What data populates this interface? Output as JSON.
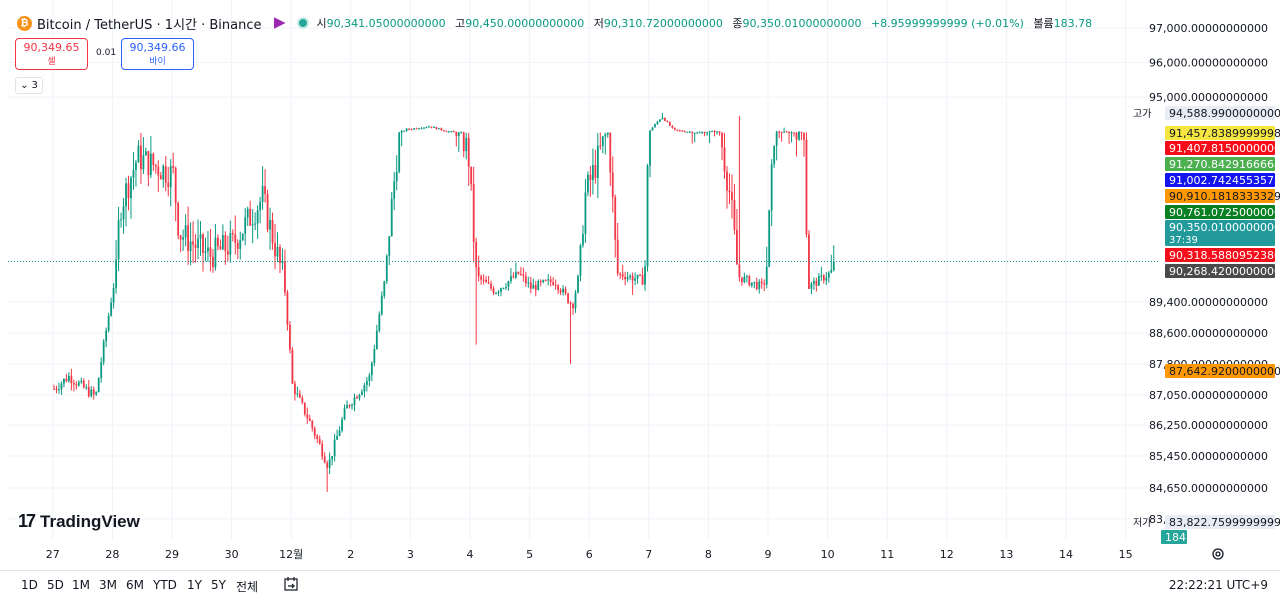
{
  "header": {
    "symbol": "Bitcoin / TetherUS · 1시간 · Binance",
    "coin_glyph": "₿",
    "ohlc": [
      {
        "label": "시",
        "value": "90,341.05000000000"
      },
      {
        "label": "고",
        "value": "90,450.00000000000"
      },
      {
        "label": "저",
        "value": "90,310.72000000000"
      },
      {
        "label": "종",
        "value": "90,350.01000000000"
      },
      {
        "label": "",
        "value": "+8.95999999999 (+0.01%)"
      },
      {
        "label": "볼륨",
        "value": "183.78"
      }
    ]
  },
  "trade": {
    "sell_price": "90,349.65",
    "sell_label": "셀",
    "spread": "0.01",
    "buy_price": "90,349.66",
    "buy_label": "바이",
    "indicators_count": "3"
  },
  "logo": {
    "mark": "17",
    "text": "TradingView"
  },
  "colors": {
    "up": "#089981",
    "down": "#f23645",
    "grid": "#f0f3fa"
  },
  "chart_data": {
    "type": "candlestick",
    "y_ticks": [
      "97,000.00000000000",
      "96,000.00000000000",
      "95,000.00000000000",
      "89,400.00000000000",
      "88,600.00000000000",
      "87,800.00000000000",
      "87,050.00000000000",
      "86,250.00000000000",
      "85,450.00000000000",
      "84,650.00000000000",
      "83,850.00000000000"
    ],
    "x_ticks": [
      "27",
      "28",
      "29",
      "30",
      "12월",
      "2",
      "3",
      "4",
      "5",
      "6",
      "7",
      "8",
      "9",
      "10",
      "11",
      "12",
      "13",
      "14",
      "15"
    ],
    "price_labels": [
      {
        "prefix": "고가",
        "text": "94,588.99000000000",
        "bg": "#e8ecf5",
        "fg": "#131722"
      },
      {
        "prefix": "",
        "text": "91,457.83899999984",
        "bg": "#f5e642",
        "fg": "#131722"
      },
      {
        "prefix": "",
        "text": "91,407.81500000000",
        "bg": "#f70d1a",
        "fg": "#ffffff"
      },
      {
        "prefix": "",
        "text": "91,270.84291666684",
        "bg": "#4caf50",
        "fg": "#ffffff"
      },
      {
        "prefix": "",
        "text": "91,002.74245535756",
        "bg": "#1414f0",
        "fg": "#ffffff"
      },
      {
        "prefix": "",
        "text": "90,910.18183333292",
        "bg": "#ff9800",
        "fg": "#131722"
      },
      {
        "prefix": "",
        "text": "90,761.07250000000",
        "bg": "#087f23",
        "fg": "#ffffff"
      },
      {
        "prefix": "",
        "text": "90,350.01000000000",
        "sub": "37:39",
        "bg": "#22999a",
        "fg": "#ffffff"
      },
      {
        "prefix": "",
        "text": "90,318.58809523802",
        "bg": "#f70d1a",
        "fg": "#ffffff"
      },
      {
        "prefix": "",
        "text": "90,268.42000000000",
        "bg": "#4a4a4a",
        "fg": "#ffffff"
      },
      {
        "prefix": "",
        "text": "87,642.92000000001",
        "bg": "#ff9800",
        "fg": "#131722"
      },
      {
        "prefix": "저가",
        "text": "83,822.75999999999",
        "bg": "#e8ecf5",
        "fg": "#131722"
      },
      {
        "prefix": "",
        "text": "184",
        "bg": "#26a69a",
        "fg": "#ffffff"
      }
    ],
    "last_close": 90350.01,
    "series_anchors": [
      [
        0,
        87200
      ],
      [
        0.25,
        87500
      ],
      [
        0.7,
        87000
      ],
      [
        0.9,
        88900
      ],
      [
        1.1,
        90800
      ],
      [
        1.4,
        91250
      ],
      [
        2.0,
        91100
      ],
      [
        2.1,
        90600
      ],
      [
        2.6,
        90400
      ],
      [
        3.0,
        90500
      ],
      [
        3.5,
        90900
      ],
      [
        3.85,
        90200
      ],
      [
        4.0,
        87300
      ],
      [
        4.3,
        86300
      ],
      [
        4.6,
        85200
      ],
      [
        4.9,
        86700
      ],
      [
        5.3,
        87500
      ],
      [
        5.6,
        90500
      ],
      [
        5.9,
        92000
      ],
      [
        6.3,
        92500
      ],
      [
        6.6,
        91700
      ],
      [
        6.95,
        91300
      ],
      [
        7.1,
        90100
      ],
      [
        7.4,
        89700
      ],
      [
        7.8,
        90200
      ],
      [
        8.0,
        89800
      ],
      [
        8.4,
        90000
      ],
      [
        8.7,
        89300
      ],
      [
        8.9,
        90900
      ],
      [
        9.3,
        91500
      ],
      [
        9.45,
        90200
      ],
      [
        9.9,
        90000
      ],
      [
        10.0,
        91900
      ],
      [
        10.2,
        94000
      ],
      [
        10.4,
        91900
      ],
      [
        10.8,
        91500
      ],
      [
        11.1,
        91700
      ],
      [
        11.35,
        90900
      ],
      [
        11.5,
        90100
      ],
      [
        11.9,
        89800
      ],
      [
        12.1,
        91600
      ],
      [
        12.6,
        91500
      ],
      [
        12.65,
        89800
      ],
      [
        13.1,
        90300
      ]
    ],
    "wicks": [
      {
        "t": 4.6,
        "low": 84550
      },
      {
        "t": 10.2,
        "high": 94588.99
      },
      {
        "t": 11.5,
        "high": 94100
      },
      {
        "t": 12.25,
        "high": 92300
      },
      {
        "t": 9.7,
        "low": 89600
      },
      {
        "t": 7.1,
        "low": 88300
      },
      {
        "t": 8.65,
        "low": 87800
      }
    ]
  },
  "bottom": {
    "ranges": [
      "1D",
      "5D",
      "1M",
      "3M",
      "6M",
      "YTD",
      "1Y",
      "5Y",
      "전체"
    ],
    "clock": "22:22:21 UTC+9"
  }
}
